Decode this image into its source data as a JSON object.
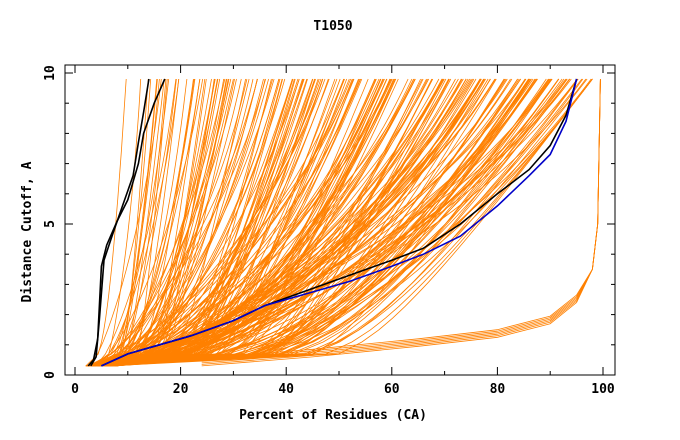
{
  "chart_data": {
    "type": "line",
    "title": "T1050",
    "xlabel": "Percent of Residues (CA)",
    "ylabel": "Distance Cutoff, A",
    "xlim": [
      0,
      100
    ],
    "ylim": [
      0,
      10
    ],
    "xticks": [
      "0",
      "20",
      "40",
      "60",
      "80",
      "100"
    ],
    "yticks": [
      "0",
      "5",
      "10"
    ],
    "grid": false,
    "colors": {
      "models": "#ff8000",
      "highlight_black": "#000000",
      "highlight_blue": "#0000c8"
    },
    "series": [
      {
        "color": "#000000",
        "points": [
          [
            2.5,
            0.3
          ],
          [
            3.5,
            0.5
          ],
          [
            4.3,
            1.2
          ],
          [
            5,
            3.6
          ],
          [
            6,
            4.3
          ],
          [
            8,
            5.1
          ],
          [
            10,
            5.8
          ],
          [
            12,
            7.0
          ],
          [
            13,
            8.0
          ],
          [
            15,
            9.0
          ],
          [
            17,
            9.8
          ]
        ]
      },
      {
        "color": "#000000",
        "points": [
          [
            3,
            0.3
          ],
          [
            4,
            0.6
          ],
          [
            4.6,
            1.8
          ],
          [
            5.5,
            3.8
          ],
          [
            7,
            4.6
          ],
          [
            9,
            5.6
          ],
          [
            11,
            6.6
          ],
          [
            12,
            7.7
          ],
          [
            13,
            8.7
          ],
          [
            14,
            9.8
          ]
        ]
      },
      {
        "color": "#000000",
        "points": [
          [
            5,
            0.3
          ],
          [
            10,
            0.7
          ],
          [
            16,
            1.0
          ],
          [
            22,
            1.3
          ],
          [
            30,
            1.8
          ],
          [
            36,
            2.3
          ],
          [
            44,
            2.8
          ],
          [
            52,
            3.3
          ],
          [
            60,
            3.8
          ],
          [
            66,
            4.2
          ],
          [
            73,
            5.0
          ],
          [
            80,
            6.0
          ],
          [
            86,
            6.8
          ],
          [
            90,
            7.6
          ],
          [
            93,
            8.6
          ],
          [
            95,
            9.8
          ]
        ]
      },
      {
        "color": "#0000c8",
        "points": [
          [
            5,
            0.3
          ],
          [
            10,
            0.7
          ],
          [
            16,
            1.0
          ],
          [
            22,
            1.3
          ],
          [
            30,
            1.8
          ],
          [
            36,
            2.3
          ],
          [
            44,
            2.7
          ],
          [
            52,
            3.1
          ],
          [
            60,
            3.6
          ],
          [
            66,
            4.0
          ],
          [
            73,
            4.6
          ],
          [
            80,
            5.6
          ],
          [
            86,
            6.6
          ],
          [
            90,
            7.3
          ],
          [
            93,
            8.4
          ],
          [
            95,
            9.8
          ]
        ]
      }
    ]
  }
}
